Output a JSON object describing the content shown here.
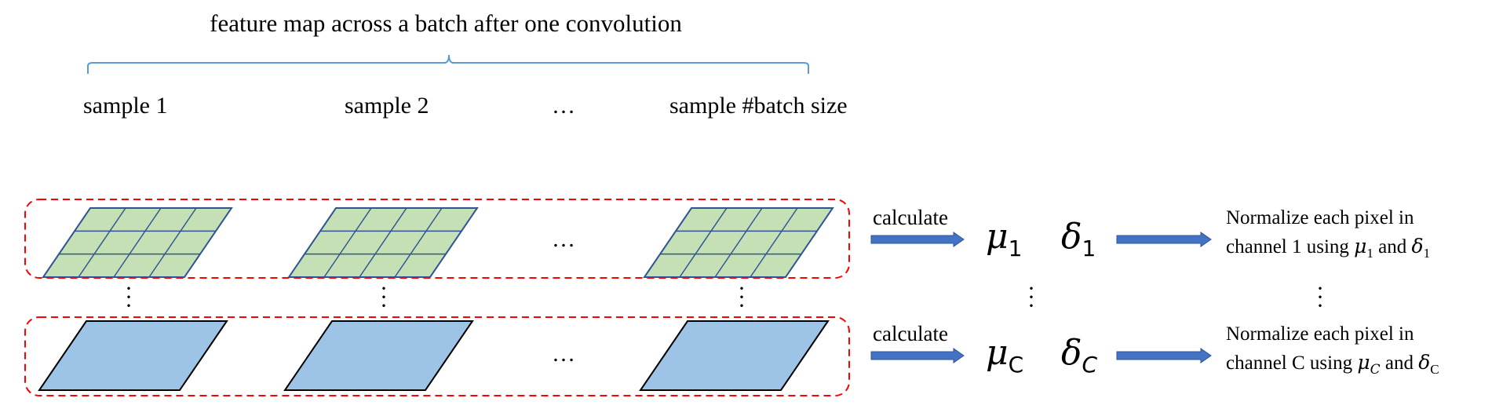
{
  "title": "feature map across a batch after one convolution",
  "samples": {
    "first": "sample 1",
    "second": "sample 2",
    "ellipsis": "…",
    "last": "sample #batch size"
  },
  "row_ellipsis": "…",
  "channel_rows": [
    {
      "calc_label": "calculate",
      "mean_symbol": "μ",
      "mean_sub": "1",
      "std_symbol": "δ",
      "std_sub": "1",
      "norm_line1": "Normalize each pixel in",
      "norm_line2_prefix": "channel 1 using",
      "norm_and": "and",
      "norm_sub": "1"
    },
    {
      "calc_label": "calculate",
      "mean_symbol": "μ",
      "mean_sub": "C",
      "std_symbol": "δ",
      "std_sub": "C",
      "norm_line1": "Normalize each pixel in",
      "norm_line2_prefix": "channel C using",
      "norm_and": "and",
      "norm_sub": "C"
    }
  ],
  "colors": {
    "grid_fill": "#c5e0b4",
    "grid_stroke": "#2f5597",
    "plain_fill": "#9dc3e6",
    "plain_stroke": "#000000",
    "dashed_border": "#ff0000",
    "arrow": "#4472c4",
    "brace": "#5b9bd5"
  }
}
